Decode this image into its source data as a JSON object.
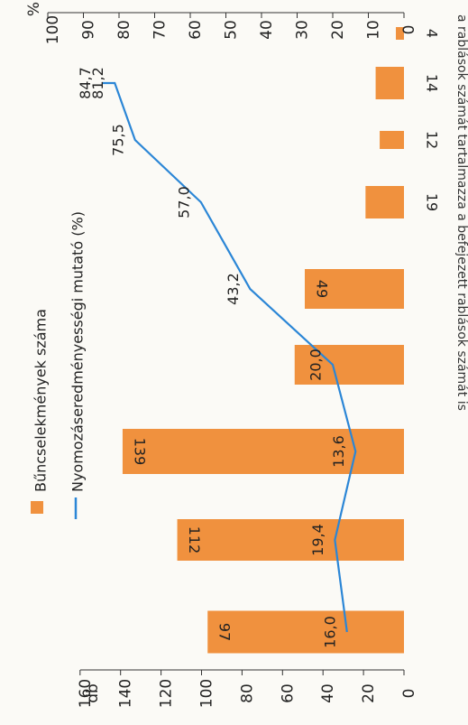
{
  "header_text": "a rablások számát tartalmazza a befejezett rablások számát is",
  "chart_data": {
    "type": "bar",
    "categories": [
      "",
      "",
      "",
      "",
      "",
      "",
      "",
      "",
      "4"
    ],
    "series": [
      {
        "name": "Bűncselekmények száma",
        "chart": "bar",
        "axis": "left",
        "values": [
          97,
          112,
          139,
          54,
          49,
          19,
          12,
          14,
          4
        ],
        "labels": [
          "97",
          "112",
          "139",
          "",
          "49",
          "19",
          "12",
          "14",
          "4"
        ]
      },
      {
        "name": "Nyomozáseredményességi mutató (%)",
        "chart": "line",
        "axis": "right",
        "values": [
          16.0,
          19.4,
          13.6,
          20.0,
          43.2,
          57.0,
          75.5,
          81.2,
          84.7
        ],
        "labels": [
          "16,0",
          "19,4",
          "13,6",
          "20,0",
          "43,2",
          "57,0",
          "75,5",
          "81,2",
          "84,7"
        ]
      }
    ],
    "y_left": {
      "unit": "db",
      "ticks": [
        "0",
        "20",
        "40",
        "60",
        "80",
        "100",
        "120",
        "140",
        "160"
      ],
      "lim": [
        0,
        160
      ]
    },
    "y_right": {
      "unit": "%",
      "ticks": [
        "0",
        "10",
        "20",
        "30",
        "40",
        "50",
        "60",
        "70",
        "80",
        "90",
        "100"
      ],
      "lim": [
        0,
        100
      ]
    },
    "orientation": "rotated-90",
    "legend_position": "top",
    "grid": false,
    "colors": {
      "bar": "#f0913e",
      "line": "#2b86d6"
    }
  }
}
